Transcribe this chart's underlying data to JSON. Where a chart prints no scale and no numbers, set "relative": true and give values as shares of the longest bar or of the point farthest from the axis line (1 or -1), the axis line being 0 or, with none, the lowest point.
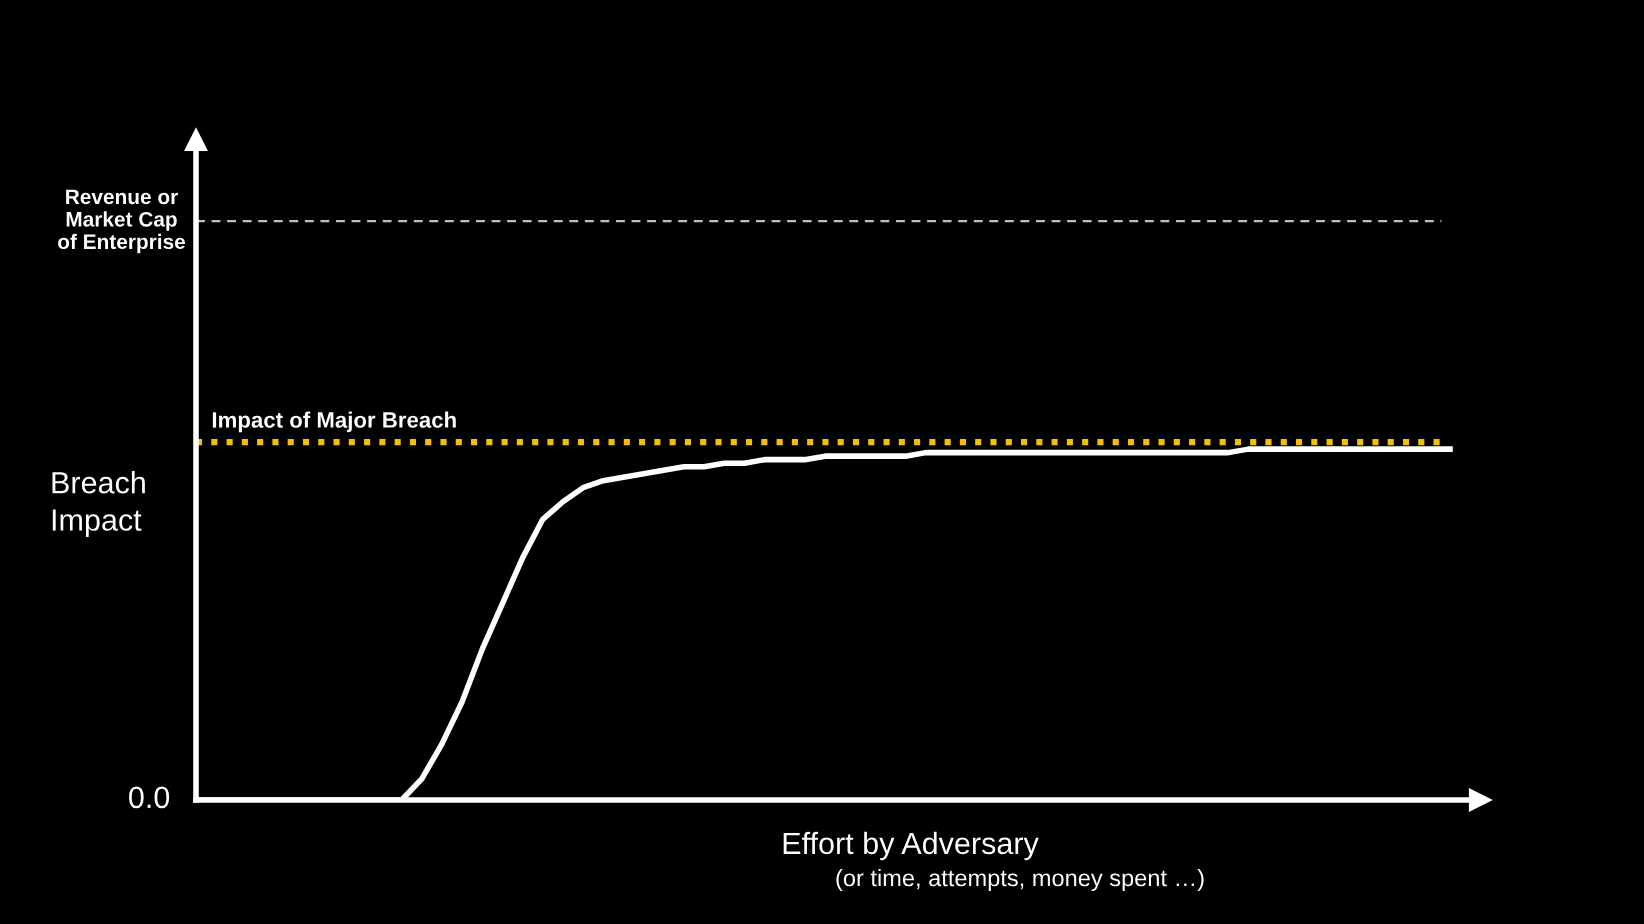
{
  "chart_data": {
    "type": "line",
    "relative": true,
    "ylabel": "Breach\nImpact",
    "xlabel": "Effort by Adversary",
    "annotations": [
      "0.0",
      "(or time, attempts, money spent …)"
    ],
    "categories": [
      null,
      null,
      null,
      null,
      null,
      null,
      null,
      null,
      null,
      null,
      null,
      null,
      null,
      null,
      null,
      null,
      null,
      null,
      null,
      null,
      null,
      null,
      null,
      null,
      null,
      null,
      null,
      null,
      null,
      null,
      null,
      null,
      null,
      null,
      null,
      null,
      null,
      null,
      null,
      null,
      null,
      null,
      null,
      null,
      null,
      null,
      null,
      null,
      null,
      null,
      null,
      null,
      null,
      null,
      null,
      null,
      null,
      null,
      null,
      null,
      null,
      null,
      null
    ],
    "series": [
      {
        "color": "#ffffff",
        "values": [
          0,
          0,
          0,
          0,
          0,
          0,
          0,
          0,
          0,
          0,
          0,
          0.06,
          0.16,
          0.28,
          0.43,
          0.56,
          0.69,
          0.8,
          0.85,
          0.89,
          0.91,
          0.92,
          0.93,
          0.94,
          0.95,
          0.95,
          0.96,
          0.96,
          0.97,
          0.97,
          0.97,
          0.98,
          0.98,
          0.98,
          0.98,
          0.98,
          0.99,
          0.99,
          0.99,
          0.99,
          0.99,
          0.99,
          0.99,
          0.99,
          0.99,
          0.99,
          0.99,
          0.99,
          0.99,
          0.99,
          0.99,
          0.99,
          1.0,
          1.0,
          1.0,
          1.0,
          1.0,
          1.0,
          1.0,
          1.0,
          1.0,
          1.0,
          1.0
        ]
      }
    ],
    "ref_lines": [
      {
        "axis": "y",
        "value": 1.65,
        "label": "Revenue or\nMarket Cap\nof Enterprise",
        "color": "#bfbfbf",
        "line_style": "dashed"
      },
      {
        "axis": "y",
        "value": 1.02,
        "label": "Impact of Major Breach",
        "color": "#f2c200",
        "line_style": "dotted"
      }
    ],
    "marker": "none",
    "line_style": "solid"
  }
}
